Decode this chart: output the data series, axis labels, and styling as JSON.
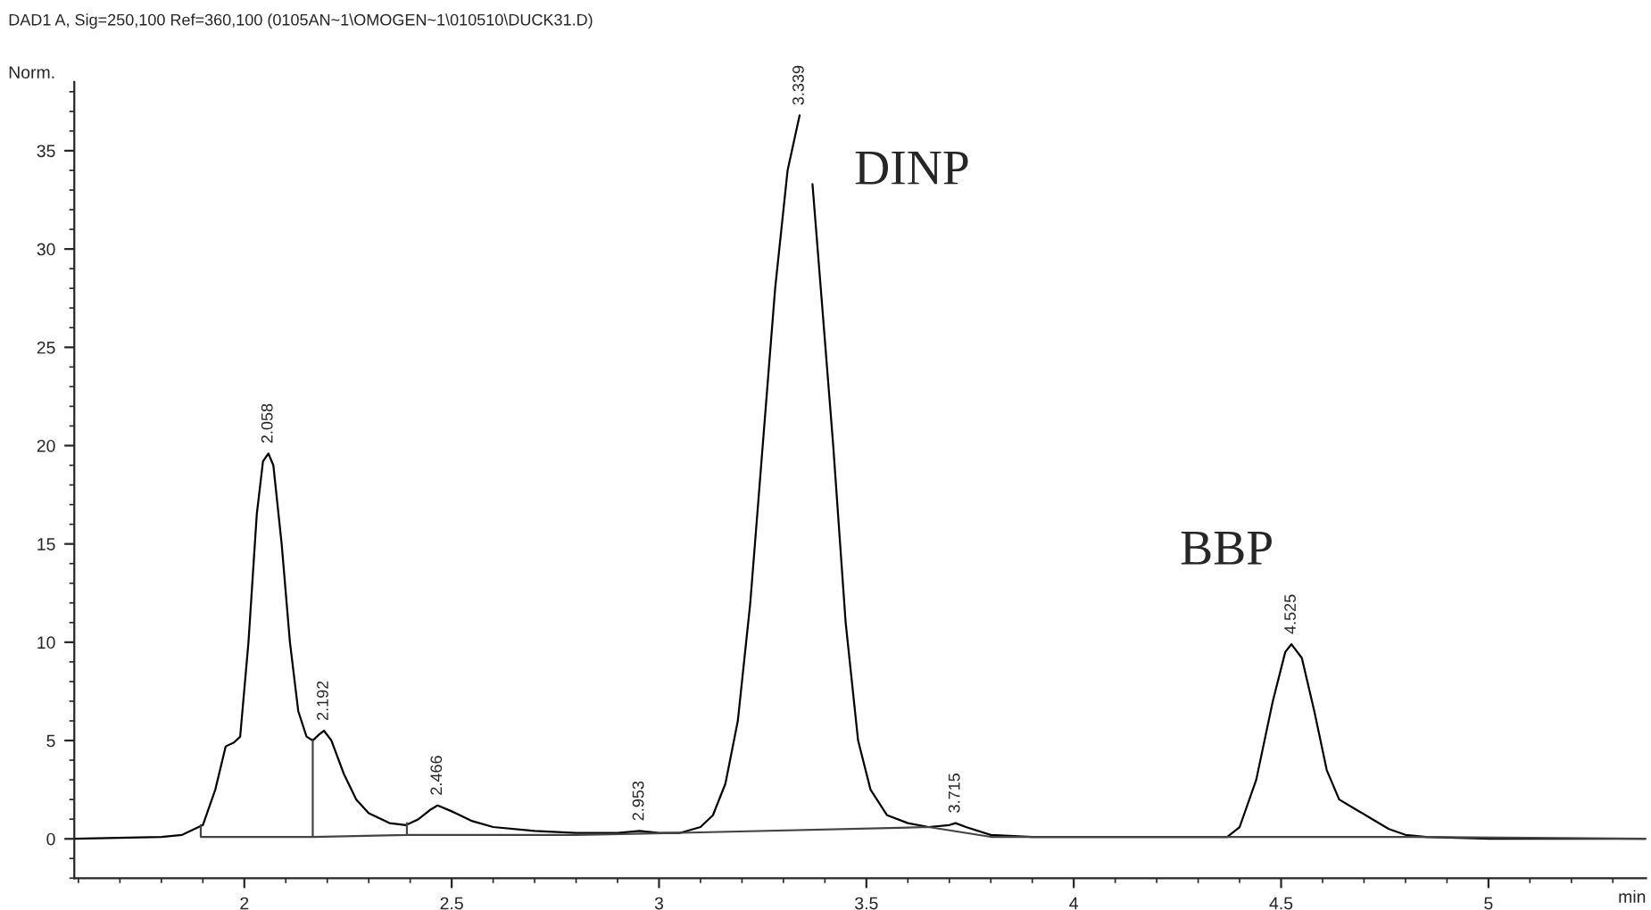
{
  "chart_data": {
    "type": "line",
    "title": "DAD1 A, Sig=250,100 Ref=360,100 (0105AN~1\\OMOGEN~1\\010510\\DUCK31.D)",
    "xlabel": "min",
    "ylabel": "Norm.",
    "xlim": [
      1.59,
      5.38
    ],
    "xticks": [
      2,
      2.5,
      3,
      3.5,
      4,
      4.5,
      5
    ],
    "ylim": [
      -2,
      38.5
    ],
    "yticks": [
      0,
      5,
      10,
      15,
      20,
      25,
      30,
      35
    ],
    "grid": false,
    "legend": false,
    "marker": "none",
    "line_style": "solid",
    "series": [
      {
        "color": "#000000",
        "x": [
          1.59,
          1.8,
          1.85,
          1.9,
          1.93,
          1.955,
          1.975,
          1.99,
          2.01,
          2.03,
          2.045,
          2.058,
          2.07,
          2.09,
          2.11,
          2.13,
          2.15,
          2.165,
          2.18,
          2.192,
          2.21,
          2.24,
          2.27,
          2.3,
          2.35,
          2.39,
          2.42,
          2.45,
          2.466,
          2.5,
          2.55,
          2.6,
          2.7,
          2.8,
          2.9,
          2.953,
          3.0,
          3.05,
          3.1,
          3.13,
          3.16,
          3.19,
          3.22,
          3.25,
          3.28,
          3.31,
          3.339,
          3.355,
          3.37,
          3.39,
          3.42,
          3.45,
          3.48,
          3.51,
          3.55,
          3.6,
          3.65,
          3.7,
          3.715,
          3.74,
          3.8,
          3.9,
          4.0,
          4.3,
          4.37,
          4.4,
          4.44,
          4.48,
          4.51,
          4.525,
          4.55,
          4.58,
          4.61,
          4.64,
          4.68,
          4.72,
          4.76,
          4.8,
          4.85,
          5.0,
          5.38
        ],
        "values": [
          0,
          0.1,
          0.2,
          0.7,
          2.5,
          4.7,
          4.9,
          5.2,
          10,
          16.5,
          19.2,
          19.6,
          19,
          15,
          10,
          6.5,
          5.2,
          5.0,
          5.3,
          5.5,
          5.0,
          3.3,
          2.0,
          1.3,
          0.8,
          0.7,
          1.0,
          1.5,
          1.7,
          1.4,
          0.9,
          0.6,
          0.4,
          0.3,
          0.3,
          0.4,
          0.3,
          0.3,
          0.6,
          1.2,
          2.8,
          6,
          12,
          20,
          28,
          34,
          36.8,
          null,
          33.3,
          28,
          20,
          11,
          5,
          2.5,
          1.2,
          0.8,
          0.6,
          0.7,
          0.8,
          0.6,
          0.2,
          0.1,
          0.1,
          0.1,
          0.1,
          0.6,
          3,
          7,
          9.5,
          9.9,
          9.2,
          6.5,
          3.5,
          2.0,
          1.5,
          1.0,
          0.5,
          0.2,
          0.1,
          0,
          0
        ]
      },
      {
        "color": "#444444",
        "x": [
          1.895,
          1.895,
          1.895,
          2.165,
          2.165,
          2.165,
          2.392,
          2.392,
          2.392,
          2.8,
          3.04,
          3.65,
          3.8,
          4.05,
          4.36,
          4.82,
          5.38
        ],
        "values": [
          0.7,
          0.1,
          0.1,
          0.1,
          5.0,
          0.1,
          0.2,
          0.8,
          0.2,
          0.2,
          0.3,
          0.6,
          0.1,
          0.1,
          0.1,
          0.1,
          0.0
        ]
      }
    ],
    "annotations": [
      {
        "text": "2.058",
        "x": 2.058,
        "y": 19.6
      },
      {
        "text": "2.192",
        "x": 2.192,
        "y": 5.5
      },
      {
        "text": "2.466",
        "x": 2.466,
        "y": 1.7
      },
      {
        "text": "2.953",
        "x": 2.953,
        "y": 0.4
      },
      {
        "text": "3.339",
        "x": 3.339,
        "y": 36.8
      },
      {
        "text": "3.715",
        "x": 3.715,
        "y": 0.8
      },
      {
        "text": "4.525",
        "x": 4.525,
        "y": 9.9
      },
      {
        "text": "DINP",
        "x": 3.339,
        "y": 36.8
      },
      {
        "text": "BBP",
        "x": 4.525,
        "y": 9.9
      }
    ]
  }
}
